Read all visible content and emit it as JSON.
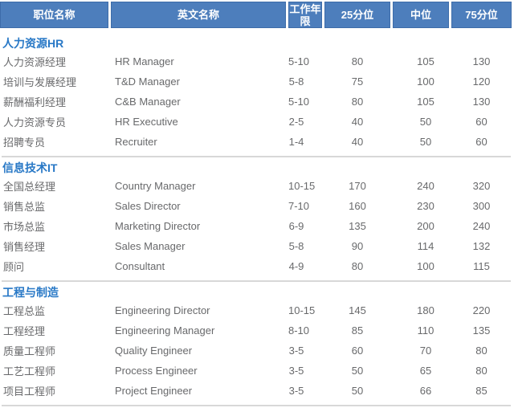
{
  "colors": {
    "header_bg": "#4d7ebc",
    "header_border": "#3d6ca9",
    "header_text": "#ffffff",
    "section_title": "#2878c6",
    "body_text": "#68696b",
    "divider": "#d8d8d8"
  },
  "table": {
    "columns": [
      "职位名称",
      "英文名称",
      "工作年限",
      "25分位",
      "中位",
      "75分位"
    ],
    "sections": [
      {
        "title": "人力资源HR",
        "rows": [
          {
            "position": "人力资源经理",
            "english": "HR Manager",
            "years": "5-10",
            "p25": "80",
            "median": "105",
            "p75": "130"
          },
          {
            "position": "培训与发展经理",
            "english": "T&D Manager",
            "years": "5-8",
            "p25": "75",
            "median": "100",
            "p75": "120"
          },
          {
            "position": "薪酬福利经理",
            "english": "C&B Manager",
            "years": "5-10",
            "p25": "80",
            "median": "105",
            "p75": "130"
          },
          {
            "position": "人力资源专员",
            "english": "HR Executive",
            "years": "2-5",
            "p25": "40",
            "median": "50",
            "p75": "60"
          },
          {
            "position": "招聘专员",
            "english": "Recruiter",
            "years": "1-4",
            "p25": "40",
            "median": "50",
            "p75": "60"
          }
        ]
      },
      {
        "title": "信息技术IT",
        "rows": [
          {
            "position": "全国总经理",
            "english": "Country Manager",
            "years": "10-15",
            "p25": "170",
            "median": "240",
            "p75": "320"
          },
          {
            "position": "销售总监",
            "english": "Sales Director",
            "years": "7-10",
            "p25": "160",
            "median": "230",
            "p75": "300"
          },
          {
            "position": "市场总监",
            "english": "Marketing Director",
            "years": "6-9",
            "p25": "135",
            "median": "200",
            "p75": "240"
          },
          {
            "position": "销售经理",
            "english": "Sales Manager",
            "years": "5-8",
            "p25": "90",
            "median": "114",
            "p75": "132"
          },
          {
            "position": "顾问",
            "english": "Consultant",
            "years": "4-9",
            "p25": "80",
            "median": "100",
            "p75": "115"
          }
        ]
      },
      {
        "title": "工程与制造",
        "rows": [
          {
            "position": "工程总监",
            "english": "Engineering Director",
            "years": "10-15",
            "p25": "145",
            "median": "180",
            "p75": "220"
          },
          {
            "position": "工程经理",
            "english": "Engineering Manager",
            "years": "8-10",
            "p25": "85",
            "median": "110",
            "p75": "135"
          },
          {
            "position": "质量工程师",
            "english": "Quality Engineer",
            "years": "3-5",
            "p25": "60",
            "median": "70",
            "p75": "80"
          },
          {
            "position": "工艺工程师",
            "english": "Process Engineer",
            "years": "3-5",
            "p25": "50",
            "median": "65",
            "p75": "80"
          },
          {
            "position": "项目工程师",
            "english": "Project Engineer",
            "years": "3-5",
            "p25": "50",
            "median": "66",
            "p75": "85"
          }
        ]
      }
    ]
  }
}
